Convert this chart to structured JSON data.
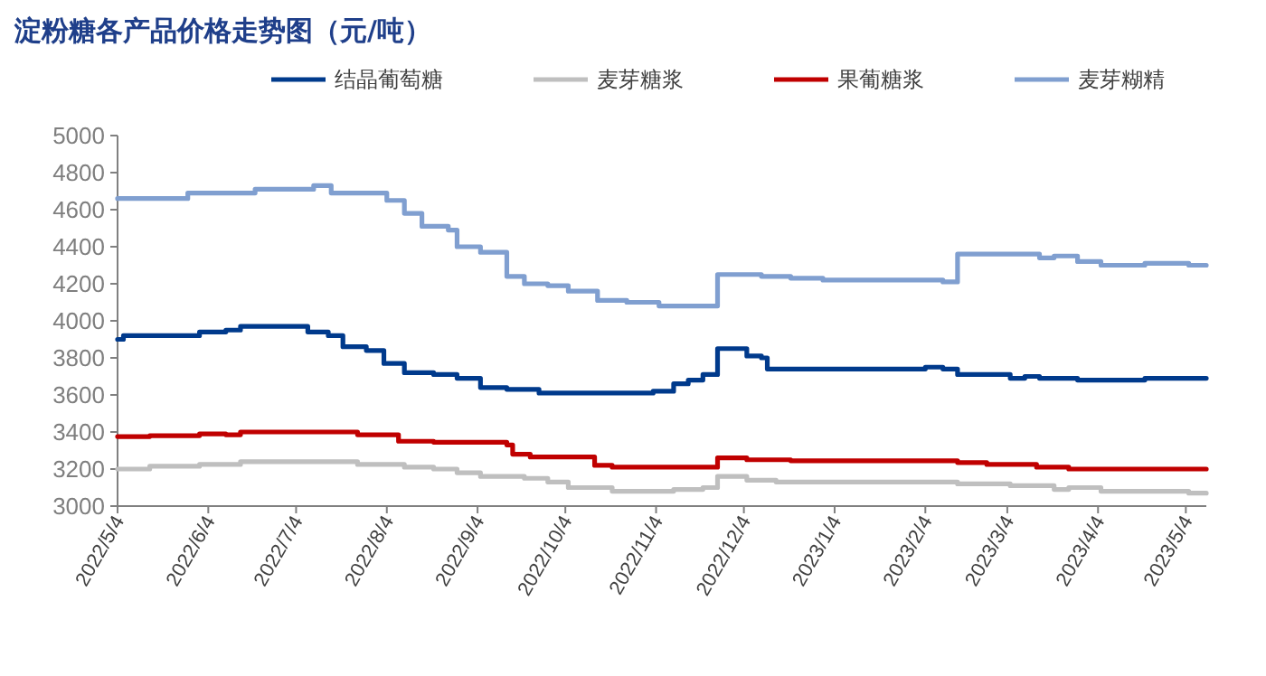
{
  "chart_data": {
    "type": "step",
    "title": "淀粉糖各产品价格走势图（元/吨）",
    "legend": "top",
    "xlim": [
      "2022-05-04",
      "2023-05-11"
    ],
    "ylim": [
      3000,
      5000
    ],
    "yticks": [
      3000,
      3200,
      3400,
      3600,
      3800,
      4000,
      4200,
      4400,
      4600,
      4800,
      5000
    ],
    "xticks": [
      {
        "value": "2022-05-04",
        "label": "2022/5/4"
      },
      {
        "value": "2022-06-04",
        "label": "2022/6/4"
      },
      {
        "value": "2022-07-04",
        "label": "2022/7/4"
      },
      {
        "value": "2022-08-04",
        "label": "2022/8/4"
      },
      {
        "value": "2022-09-04",
        "label": "2022/9/4"
      },
      {
        "value": "2022-10-04",
        "label": "2022/10/4"
      },
      {
        "value": "2022-11-04",
        "label": "2022/11/4"
      },
      {
        "value": "2022-12-04",
        "label": "2022/12/4"
      },
      {
        "value": "2023-01-04",
        "label": "2023/1/4"
      },
      {
        "value": "2023-02-04",
        "label": "2023/2/4"
      },
      {
        "value": "2023-03-04",
        "label": "2023/3/4"
      },
      {
        "value": "2023-04-04",
        "label": "2023/4/4"
      },
      {
        "value": "2023-05-04",
        "label": "2023/5/4"
      }
    ],
    "series": [
      {
        "name": "结晶葡萄糖",
        "color": "#003a8c",
        "x": [
          "2022-05-04",
          "2022-05-06",
          "2022-06-01",
          "2022-06-10",
          "2022-06-15",
          "2022-07-08",
          "2022-07-15",
          "2022-07-20",
          "2022-07-28",
          "2022-08-03",
          "2022-08-10",
          "2022-08-20",
          "2022-08-28",
          "2022-09-05",
          "2022-09-14",
          "2022-09-25",
          "2022-11-03",
          "2022-11-10",
          "2022-11-15",
          "2022-11-20",
          "2022-11-25",
          "2022-12-05",
          "2022-12-10",
          "2022-12-12",
          "2023-02-04",
          "2023-02-10",
          "2023-02-15",
          "2023-03-05",
          "2023-03-10",
          "2023-03-15",
          "2023-03-28",
          "2023-04-20",
          "2023-05-11"
        ],
        "values": [
          3900,
          3920,
          3940,
          3950,
          3970,
          3940,
          3920,
          3860,
          3840,
          3770,
          3720,
          3710,
          3690,
          3640,
          3630,
          3610,
          3620,
          3660,
          3680,
          3710,
          3850,
          3810,
          3800,
          3740,
          3750,
          3740,
          3710,
          3690,
          3700,
          3690,
          3680,
          3690,
          3690
        ]
      },
      {
        "name": "麦芽糖浆",
        "color": "#bfbfbf",
        "x": [
          "2022-05-04",
          "2022-05-15",
          "2022-06-01",
          "2022-06-15",
          "2022-07-25",
          "2022-08-10",
          "2022-08-20",
          "2022-08-28",
          "2022-09-05",
          "2022-09-20",
          "2022-09-28",
          "2022-10-05",
          "2022-10-20",
          "2022-11-10",
          "2022-11-20",
          "2022-11-25",
          "2022-12-05",
          "2022-12-15",
          "2023-02-15",
          "2023-03-05",
          "2023-03-20",
          "2023-03-25",
          "2023-04-05",
          "2023-05-05",
          "2023-05-11"
        ],
        "values": [
          3200,
          3215,
          3225,
          3240,
          3225,
          3210,
          3200,
          3180,
          3160,
          3150,
          3130,
          3100,
          3080,
          3090,
          3100,
          3160,
          3140,
          3130,
          3120,
          3110,
          3090,
          3100,
          3080,
          3070,
          3070
        ]
      },
      {
        "name": "果葡糖浆",
        "color": "#c00000",
        "x": [
          "2022-05-04",
          "2022-05-15",
          "2022-06-01",
          "2022-06-10",
          "2022-06-15",
          "2022-07-25",
          "2022-08-08",
          "2022-08-20",
          "2022-09-14",
          "2022-09-16",
          "2022-09-22",
          "2022-10-14",
          "2022-10-20",
          "2022-11-25",
          "2022-12-05",
          "2022-12-20",
          "2023-02-15",
          "2023-02-25",
          "2023-03-14",
          "2023-03-25",
          "2023-05-11"
        ],
        "values": [
          3375,
          3380,
          3390,
          3385,
          3400,
          3385,
          3350,
          3345,
          3330,
          3280,
          3265,
          3220,
          3210,
          3260,
          3250,
          3245,
          3235,
          3225,
          3210,
          3200,
          3200
        ]
      },
      {
        "name": "麦芽糊精",
        "color": "#809fd0",
        "x": [
          "2022-05-04",
          "2022-05-28",
          "2022-06-20",
          "2022-07-10",
          "2022-07-16",
          "2022-08-04",
          "2022-08-10",
          "2022-08-16",
          "2022-08-25",
          "2022-08-28",
          "2022-09-05",
          "2022-09-14",
          "2022-09-20",
          "2022-09-28",
          "2022-10-05",
          "2022-10-15",
          "2022-10-25",
          "2022-11-05",
          "2022-11-25",
          "2022-12-10",
          "2022-12-20",
          "2022-12-31",
          "2023-02-10",
          "2023-02-15",
          "2023-03-15",
          "2023-03-20",
          "2023-03-28",
          "2023-04-05",
          "2023-04-20",
          "2023-05-05",
          "2023-05-11"
        ],
        "values": [
          4660,
          4690,
          4710,
          4730,
          4690,
          4650,
          4580,
          4510,
          4490,
          4400,
          4370,
          4240,
          4200,
          4190,
          4160,
          4110,
          4100,
          4080,
          4250,
          4240,
          4230,
          4220,
          4210,
          4360,
          4340,
          4350,
          4320,
          4300,
          4310,
          4300,
          4300
        ]
      }
    ]
  }
}
